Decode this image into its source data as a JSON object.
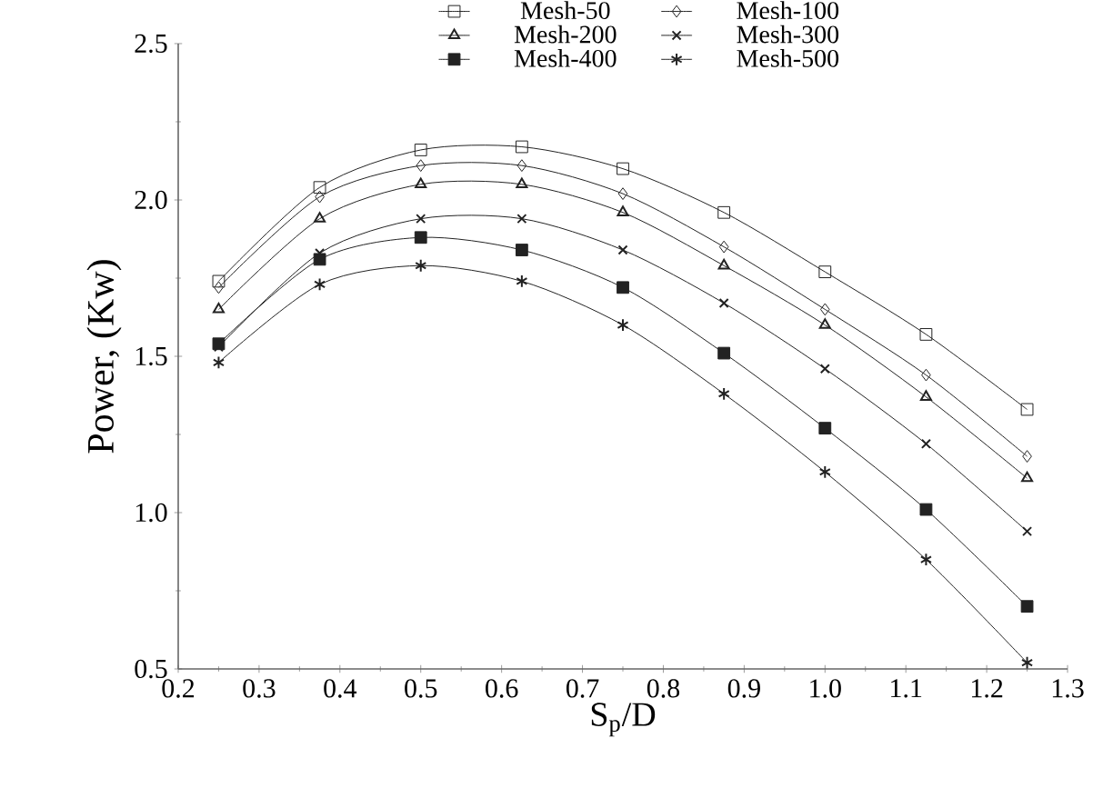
{
  "chart_data": {
    "type": "line",
    "xlabel": "S$_{p}$/D",
    "ylabel": "Power, (Kw)",
    "x": [
      0.25,
      0.375,
      0.5,
      0.625,
      0.75,
      0.875,
      1.0,
      1.125,
      1.25
    ],
    "series": [
      {
        "name": "Mesh-50",
        "color": "#222222",
        "marker": "square",
        "values": [
          1.74,
          2.04,
          2.16,
          2.17,
          2.1,
          1.96,
          1.77,
          1.57,
          1.33
        ]
      },
      {
        "name": "Mesh-100",
        "color": "#222222",
        "marker": "diamond",
        "values": [
          1.72,
          2.01,
          2.11,
          2.11,
          2.02,
          1.85,
          1.65,
          1.44,
          1.18
        ]
      },
      {
        "name": "Mesh-200",
        "color": "#222222",
        "marker": "triangle",
        "values": [
          1.65,
          1.94,
          2.05,
          2.05,
          1.96,
          1.79,
          1.6,
          1.37,
          1.11
        ]
      },
      {
        "name": "Mesh-300",
        "color": "#222222",
        "marker": "cross",
        "values": [
          1.53,
          1.83,
          1.94,
          1.94,
          1.84,
          1.67,
          1.46,
          1.22,
          0.94
        ]
      },
      {
        "name": "Mesh-400",
        "color": "#222222",
        "marker": "square",
        "values": [
          1.54,
          1.81,
          1.88,
          1.84,
          1.72,
          1.51,
          1.27,
          1.01,
          0.7
        ]
      },
      {
        "name": "Mesh-500",
        "color": "#222222",
        "marker": "cross",
        "values": [
          1.48,
          1.73,
          1.79,
          1.74,
          1.6,
          1.38,
          1.13,
          0.85,
          0.52
        ]
      }
    ],
    "xlim": [
      0.2,
      1.3
    ],
    "xticks": [
      {
        "value": 0.2,
        "label": "0.2"
      },
      {
        "value": 0.3,
        "label": "0.3"
      },
      {
        "value": 0.4,
        "label": "0.4"
      },
      {
        "value": 0.5,
        "label": "0.5"
      },
      {
        "value": 0.6,
        "label": "0.6"
      },
      {
        "value": 0.7,
        "label": "0.7"
      },
      {
        "value": 0.8,
        "label": "0.8"
      },
      {
        "value": 0.9,
        "label": "0.9"
      },
      {
        "value": 1.0,
        "label": "1.0"
      },
      {
        "value": 1.1,
        "label": "1.1"
      },
      {
        "value": 1.2,
        "label": "1.2"
      },
      {
        "value": 1.3,
        "label": "1.3"
      }
    ],
    "ylim": [
      0.5,
      2.5
    ],
    "yticks": [
      {
        "value": 0.5,
        "label": "0.5"
      },
      {
        "value": 1.0,
        "label": "1.0"
      },
      {
        "value": 1.5,
        "label": "1.5"
      },
      {
        "value": 2.0,
        "label": "2.0"
      },
      {
        "value": 2.5,
        "label": "2.5"
      }
    ],
    "grid": false,
    "legend": "top"
  }
}
